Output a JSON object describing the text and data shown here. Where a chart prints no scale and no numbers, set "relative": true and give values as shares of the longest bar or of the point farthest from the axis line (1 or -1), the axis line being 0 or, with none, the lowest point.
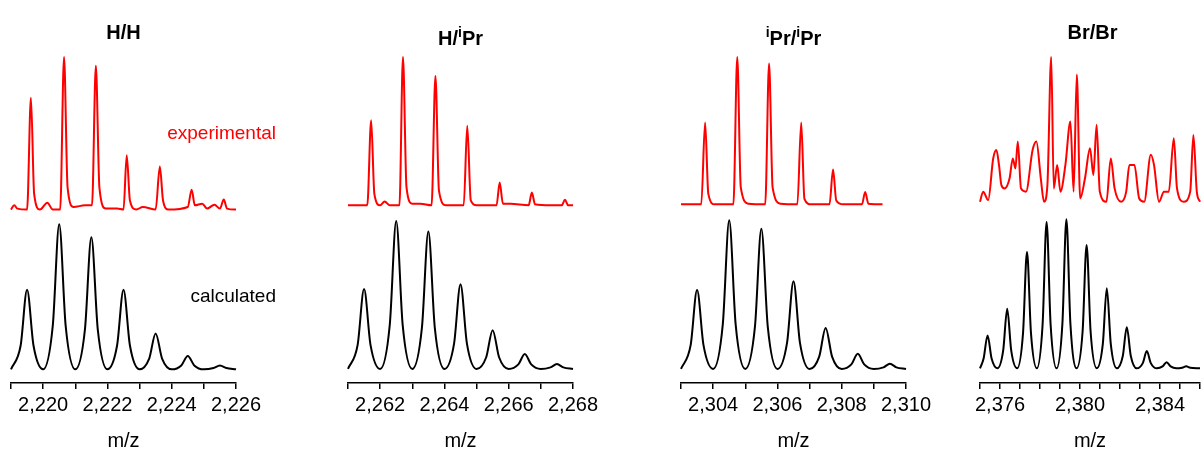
{
  "chart_data": [
    {
      "type": "line",
      "title": "H/H",
      "xlabel": "m/z",
      "relative": true,
      "xlim": [
        2219,
        2226
      ],
      "xticks": [
        {
          "value": 2219,
          "label": null
        },
        {
          "value": 2220,
          "label": "2,220"
        },
        {
          "value": 2221,
          "label": null
        },
        {
          "value": 2222,
          "label": "2,222"
        },
        {
          "value": 2223,
          "label": null
        },
        {
          "value": 2224,
          "label": "2,224"
        },
        {
          "value": 2225,
          "label": null
        },
        {
          "value": 2226,
          "label": "2,226"
        }
      ],
      "series": [
        {
          "name": "experimental",
          "color": "#ff0000",
          "x": [
            2219,
            2219.1,
            2219.2,
            2219.5,
            2219.62,
            2219.72,
            2219.9,
            2220.13,
            2220.3,
            2220.53,
            2220.65,
            2220.76,
            2220.95,
            2221.3,
            2221.52,
            2221.64,
            2221.75,
            2221.95,
            2222.3,
            2222.5,
            2222.6,
            2222.7,
            2222.9,
            2223.1,
            2223.5,
            2223.63,
            2223.73,
            2223.9,
            2224.5,
            2224.62,
            2224.72,
            2224.95,
            2225.1,
            2225.33,
            2225.5,
            2225.62,
            2225.72,
            2226
          ],
          "values": [
            0.532,
            0.545,
            0.535,
            0.532,
            0.875,
            0.58,
            0.532,
            0.553,
            0.532,
            0.532,
            1.0,
            0.6,
            0.54,
            0.545,
            0.545,
            0.973,
            0.6,
            0.535,
            0.535,
            0.532,
            0.699,
            0.56,
            0.532,
            0.54,
            0.532,
            0.664,
            0.56,
            0.532,
            0.54,
            0.593,
            0.545,
            0.55,
            0.535,
            0.547,
            0.535,
            0.563,
            0.535,
            0.532
          ]
        },
        {
          "name": "calculated",
          "color": "#000000",
          "x": [
            2219,
            2219.3,
            2219.5,
            2219.7,
            2220,
            2220.3,
            2220.5,
            2220.7,
            2221,
            2221.3,
            2221.5,
            2221.7,
            2222,
            2222.3,
            2222.5,
            2222.7,
            2223,
            2223.3,
            2223.5,
            2223.7,
            2224,
            2224.3,
            2224.5,
            2224.7,
            2225,
            2225.3,
            2225.5,
            2225.7,
            2226
          ],
          "values": [
            0.042,
            0.115,
            0.286,
            0.115,
            0.042,
            0.176,
            0.487,
            0.176,
            0.042,
            0.164,
            0.447,
            0.164,
            0.042,
            0.115,
            0.286,
            0.115,
            0.042,
            0.075,
            0.152,
            0.075,
            0.042,
            0.054,
            0.083,
            0.054,
            0.042,
            0.046,
            0.054,
            0.046,
            0.042
          ]
        }
      ]
    },
    {
      "type": "line",
      "title": "H/$^{i}$Pr",
      "xlabel": "m/z",
      "relative": true,
      "xlim": [
        2261,
        2268
      ],
      "xticks": [
        {
          "value": 2261,
          "label": null
        },
        {
          "value": 2262,
          "label": "2,262"
        },
        {
          "value": 2263,
          "label": null
        },
        {
          "value": 2264,
          "label": "2,264"
        },
        {
          "value": 2265,
          "label": null
        },
        {
          "value": 2266,
          "label": "2,266"
        },
        {
          "value": 2267,
          "label": null
        },
        {
          "value": 2268,
          "label": "2,268"
        }
      ],
      "series": [
        {
          "color": "#ff0000",
          "x": [
            2261,
            2261.6,
            2261.72,
            2261.82,
            2262,
            2262.14,
            2262.3,
            2262.6,
            2262.71,
            2262.82,
            2263,
            2263.25,
            2263.6,
            2263.72,
            2263.83,
            2264.05,
            2264.6,
            2264.71,
            2264.82,
            2265,
            2265.62,
            2265.72,
            2265.82,
            2266.05,
            2266.62,
            2266.72,
            2266.82,
            2267.3,
            2267.65,
            2267.75,
            2267.85,
            2268
          ],
          "values": [
            0.545,
            0.545,
            0.806,
            0.58,
            0.545,
            0.557,
            0.545,
            0.545,
            1.0,
            0.6,
            0.55,
            0.55,
            0.545,
            0.942,
            0.59,
            0.545,
            0.545,
            0.789,
            0.56,
            0.545,
            0.545,
            0.615,
            0.55,
            0.55,
            0.545,
            0.584,
            0.548,
            0.545,
            0.545,
            0.562,
            0.545,
            0.545
          ]
        },
        {
          "color": "#000000",
          "x": [
            2261,
            2261.3,
            2261.5,
            2261.7,
            2262,
            2262.3,
            2262.5,
            2262.7,
            2263,
            2263.3,
            2263.5,
            2263.7,
            2264,
            2264.3,
            2264.5,
            2264.7,
            2265,
            2265.3,
            2265.5,
            2265.7,
            2266,
            2266.3,
            2266.5,
            2266.7,
            2267,
            2267.3,
            2267.5,
            2267.7,
            2268
          ],
          "values": [
            0.043,
            0.117,
            0.288,
            0.117,
            0.043,
            0.179,
            0.497,
            0.179,
            0.043,
            0.17,
            0.465,
            0.17,
            0.043,
            0.121,
            0.303,
            0.121,
            0.043,
            0.079,
            0.162,
            0.079,
            0.043,
            0.057,
            0.089,
            0.057,
            0.043,
            0.048,
            0.058,
            0.048,
            0.043
          ]
        }
      ]
    },
    {
      "type": "line",
      "title": "$^{i}$Pr/$^{i}$Pr",
      "xlabel": "m/z",
      "relative": true,
      "xlim": [
        2303,
        2310
      ],
      "xticks": [
        {
          "value": 2303,
          "label": null
        },
        {
          "value": 2304,
          "label": "2,304"
        },
        {
          "value": 2305,
          "label": null
        },
        {
          "value": 2306,
          "label": "2,306"
        },
        {
          "value": 2307,
          "label": null
        },
        {
          "value": 2308,
          "label": "2,308"
        },
        {
          "value": 2309,
          "label": null
        },
        {
          "value": 2310,
          "label": "2,310"
        }
      ],
      "series": [
        {
          "color": "#ff0000",
          "x": [
            2303,
            2303.63,
            2303.75,
            2303.85,
            2304.05,
            2304.63,
            2304.75,
            2304.86,
            2305.1,
            2305.62,
            2305.74,
            2305.85,
            2306.1,
            2306.62,
            2306.74,
            2306.84,
            2307.05,
            2307.62,
            2307.73,
            2307.83,
            2308.05,
            2308.63,
            2308.73,
            2308.83,
            2309.27
          ],
          "values": [
            0.548,
            0.548,
            0.799,
            0.58,
            0.548,
            0.548,
            1.0,
            0.6,
            0.55,
            0.548,
            0.98,
            0.6,
            0.55,
            0.548,
            0.799,
            0.565,
            0.548,
            0.548,
            0.655,
            0.56,
            0.548,
            0.548,
            0.586,
            0.55,
            0.548
          ]
        },
        {
          "color": "#000000",
          "x": [
            2303,
            2303.3,
            2303.5,
            2303.7,
            2304,
            2304.3,
            2304.5,
            2304.7,
            2305,
            2305.3,
            2305.5,
            2305.7,
            2306,
            2306.3,
            2306.5,
            2306.7,
            2307,
            2307.3,
            2307.5,
            2307.7,
            2308,
            2308.3,
            2308.5,
            2308.7,
            2309,
            2309.3,
            2309.5,
            2309.7,
            2310
          ],
          "values": [
            0.043,
            0.116,
            0.285,
            0.116,
            0.043,
            0.18,
            0.499,
            0.18,
            0.043,
            0.172,
            0.473,
            0.172,
            0.043,
            0.124,
            0.312,
            0.124,
            0.043,
            0.081,
            0.169,
            0.081,
            0.043,
            0.057,
            0.09,
            0.057,
            0.043,
            0.048,
            0.059,
            0.048,
            0.043
          ]
        }
      ]
    },
    {
      "type": "line",
      "title": "Br/Br",
      "xlabel": "m/z",
      "relative": true,
      "xlim": [
        2375,
        2386
      ],
      "xticks": [
        {
          "value": 2375,
          "label": null
        },
        {
          "value": 2376,
          "label": "2,376"
        },
        {
          "value": 2377,
          "label": null
        },
        {
          "value": 2378,
          "label": null
        },
        {
          "value": 2379,
          "label": null
        },
        {
          "value": 2380,
          "label": "2,380"
        },
        {
          "value": 2381,
          "label": null
        },
        {
          "value": 2382,
          "label": null
        },
        {
          "value": 2383,
          "label": null
        },
        {
          "value": 2384,
          "label": "2,384"
        },
        {
          "value": 2385,
          "label": null
        },
        {
          "value": 2386,
          "label": null
        }
      ],
      "series": [
        {
          "color": "#ff0000",
          "x": [
            2375,
            2375.16,
            2375.41,
            2375.66,
            2375.82,
            2375.95,
            2376.07,
            2376.23,
            2376.48,
            2376.64,
            2376.77,
            2376.89,
            2377.05,
            2377.3,
            2377.63,
            2377.82,
            2378.04,
            2378.2,
            2378.37,
            2378.56,
            2378.69,
            2378.86,
            2379.02,
            2379.27,
            2379.52,
            2379.68,
            2379.84,
            2380.01,
            2380.25,
            2380.5,
            2380.67,
            2380.83,
            2380.99,
            2381.32,
            2381.54,
            2381.73,
            2382.06,
            2382.31,
            2382.47,
            2382.72,
            2382.96,
            2383.21,
            2383.54,
            2383.7,
            2383.95,
            2384.2,
            2384.44,
            2384.69,
            2384.85,
            2385.18,
            2385.51,
            2385.67,
            2385.84,
            2386
          ],
          "values": [
            0.556,
            0.587,
            0.561,
            0.689,
            0.715,
            0.669,
            0.607,
            0.597,
            0.628,
            0.689,
            0.658,
            0.741,
            0.597,
            0.587,
            0.715,
            0.741,
            0.628,
            0.556,
            0.607,
            1.0,
            0.597,
            0.669,
            0.587,
            0.669,
            0.802,
            0.587,
            0.946,
            0.566,
            0.628,
            0.72,
            0.638,
            0.792,
            0.587,
            0.556,
            0.689,
            0.597,
            0.556,
            0.587,
            0.669,
            0.669,
            0.566,
            0.556,
            0.7,
            0.669,
            0.556,
            0.587,
            0.587,
            0.751,
            0.597,
            0.556,
            0.587,
            0.761,
            0.587,
            0.556
          ]
        },
        {
          "color": "#000000",
          "x": [
            2375,
            2375.18,
            2375.38,
            2375.58,
            2375.87,
            2376.16,
            2376.36,
            2376.56,
            2376.86,
            2377.15,
            2377.35,
            2377.55,
            2377.84,
            2378.13,
            2378.33,
            2378.53,
            2378.83,
            2379.12,
            2379.32,
            2379.52,
            2379.83,
            2380.13,
            2380.33,
            2380.53,
            2380.84,
            2381.14,
            2381.34,
            2381.54,
            2381.84,
            2382.14,
            2382.34,
            2382.54,
            2382.84,
            2383.14,
            2383.34,
            2383.54,
            2383.84,
            2384.13,
            2384.33,
            2384.53,
            2384.82,
            2385.11,
            2385.31,
            2385.51,
            2386
          ],
          "values": [
            0.045,
            0.075,
            0.146,
            0.075,
            0.045,
            0.1,
            0.228,
            0.1,
            0.045,
            0.152,
            0.402,
            0.152,
            0.045,
            0.18,
            0.494,
            0.18,
            0.045,
            0.182,
            0.502,
            0.182,
            0.045,
            0.158,
            0.423,
            0.158,
            0.045,
            0.119,
            0.291,
            0.119,
            0.045,
            0.083,
            0.171,
            0.083,
            0.045,
            0.061,
            0.098,
            0.061,
            0.045,
            0.051,
            0.064,
            0.051,
            0.045,
            0.047,
            0.051,
            0.047,
            0.045
          ]
        }
      ]
    }
  ]
}
